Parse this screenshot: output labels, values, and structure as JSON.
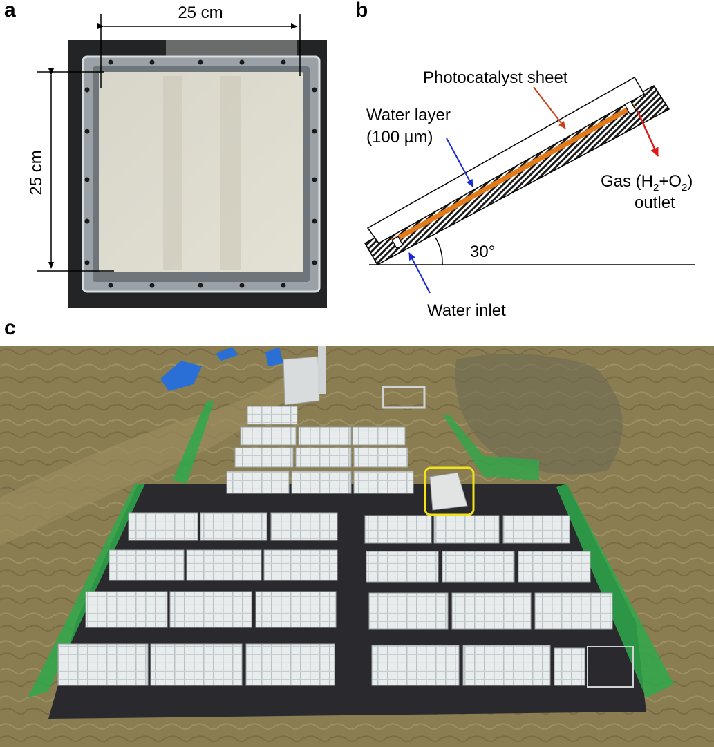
{
  "panel_a": {
    "letter": "a",
    "width_label": "25 cm",
    "height_label": "25 cm"
  },
  "panel_b": {
    "letter": "b",
    "sheet_label": "Photocatalyst sheet",
    "water_layer_line1": "Water layer",
    "water_layer_line2": "(100 µm)",
    "gas_prefix": "Gas (H",
    "gas_sub1": "2",
    "gas_mid": "+O",
    "gas_sub2": "2",
    "gas_suffix": ")",
    "outlet_label": "outlet",
    "angle_label": "30°",
    "inlet_label": "Water inlet",
    "colors": {
      "sheet_orange": "#e07a1a",
      "water_arrow": "#1a2bd6",
      "sheet_arrow": "#c8401a",
      "gas_arrow": "#e01a1a"
    }
  },
  "panel_c": {
    "letter": "c",
    "colors": {
      "grass": "#8a7d52",
      "fence": "#2ea84a",
      "highlight": "#f2e21a",
      "ground_sheet": "#2a2a2e"
    }
  }
}
